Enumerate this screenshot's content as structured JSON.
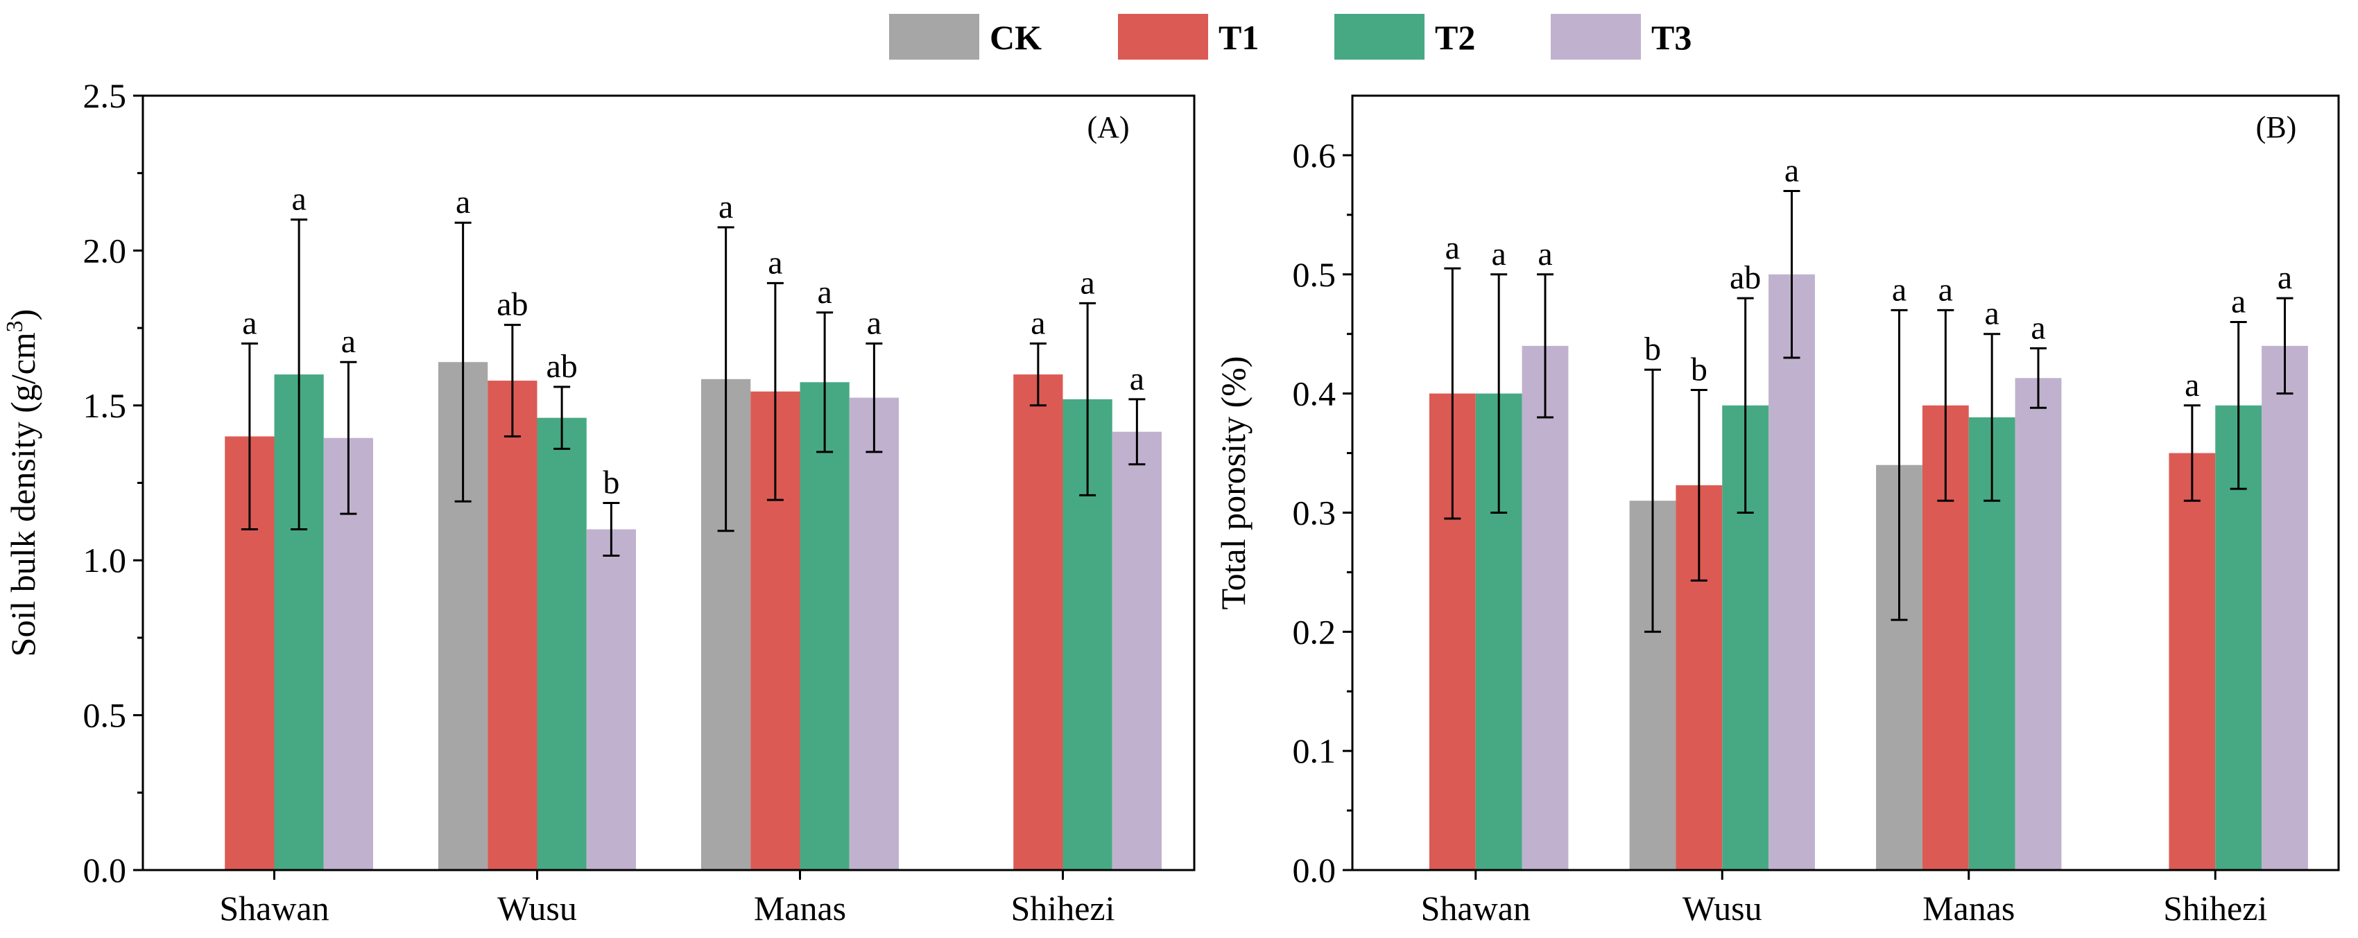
{
  "legend": [
    {
      "name": "CK",
      "color": "#a6a6a6"
    },
    {
      "name": "T1",
      "color": "#dc5a54"
    },
    {
      "name": "T2",
      "color": "#47a983"
    },
    {
      "name": "T3",
      "color": "#c0b2ce"
    }
  ],
  "chart_data": [
    {
      "type": "bar",
      "panel_label": "(A)",
      "ylabel": "Soil bulk density (g/cm",
      "ylabel_sup": "3",
      "ylabel_end": ")",
      "ylim": [
        0,
        2.5
      ],
      "yticks": [
        0.0,
        0.5,
        1.0,
        1.5,
        2.0,
        2.5
      ],
      "ytick_labels": [
        "0.0",
        "0.5",
        "1.0",
        "1.5",
        "2.0",
        "2.5"
      ],
      "categories": [
        "Shawan",
        "Wusu",
        "Manas",
        "Shihezi"
      ],
      "grid": false,
      "legend_position": "top-center",
      "series": [
        {
          "name": "CK",
          "values": [
            null,
            1.64,
            1.585,
            null
          ],
          "errors": [
            null,
            0.45,
            0.49,
            null
          ],
          "labels": [
            null,
            "a",
            "a",
            null
          ]
        },
        {
          "name": "T1",
          "values": [
            1.4,
            1.58,
            1.545,
            1.6
          ],
          "errors": [
            0.3,
            0.18,
            0.35,
            0.1
          ],
          "labels": [
            "a",
            "ab",
            "a",
            "a"
          ]
        },
        {
          "name": "T2",
          "values": [
            1.6,
            1.46,
            1.575,
            1.52
          ],
          "errors": [
            0.5,
            0.1,
            0.225,
            0.31
          ],
          "labels": [
            "a",
            "ab",
            "a",
            "a"
          ]
        },
        {
          "name": "T3",
          "values": [
            1.395,
            1.1,
            1.525,
            1.415
          ],
          "errors": [
            0.245,
            0.085,
            0.175,
            0.105
          ],
          "labels": [
            "a",
            "b",
            "a",
            "a"
          ]
        }
      ]
    },
    {
      "type": "bar",
      "panel_label": "(B)",
      "ylabel": "Total porosity (%)",
      "ylim": [
        0,
        0.65
      ],
      "yticks": [
        0.0,
        0.1,
        0.2,
        0.3,
        0.4,
        0.5,
        0.6
      ],
      "ytick_labels": [
        "0.0",
        "0.1",
        "0.2",
        "0.3",
        "0.4",
        "0.5",
        "0.6"
      ],
      "categories": [
        "Shawan",
        "Wusu",
        "Manas",
        "Shihezi"
      ],
      "grid": false,
      "legend_position": "top-center",
      "series": [
        {
          "name": "CK",
          "values": [
            null,
            0.31,
            0.34,
            null
          ],
          "errors": [
            null,
            0.11,
            0.13,
            null
          ],
          "labels": [
            null,
            "b",
            "a",
            null
          ]
        },
        {
          "name": "T1",
          "values": [
            0.4,
            0.323,
            0.39,
            0.35
          ],
          "errors": [
            0.105,
            0.08,
            0.08,
            0.04
          ],
          "labels": [
            "a",
            "b",
            "a",
            "a"
          ]
        },
        {
          "name": "T2",
          "values": [
            0.4,
            0.39,
            0.38,
            0.39
          ],
          "errors": [
            0.1,
            0.09,
            0.07,
            0.07
          ],
          "labels": [
            "a",
            "ab",
            "a",
            "a"
          ]
        },
        {
          "name": "T3",
          "values": [
            0.44,
            0.5,
            0.413,
            0.44
          ],
          "errors": [
            0.06,
            0.07,
            0.025,
            0.04
          ],
          "labels": [
            "a",
            "a",
            "a",
            "a"
          ]
        }
      ]
    }
  ]
}
